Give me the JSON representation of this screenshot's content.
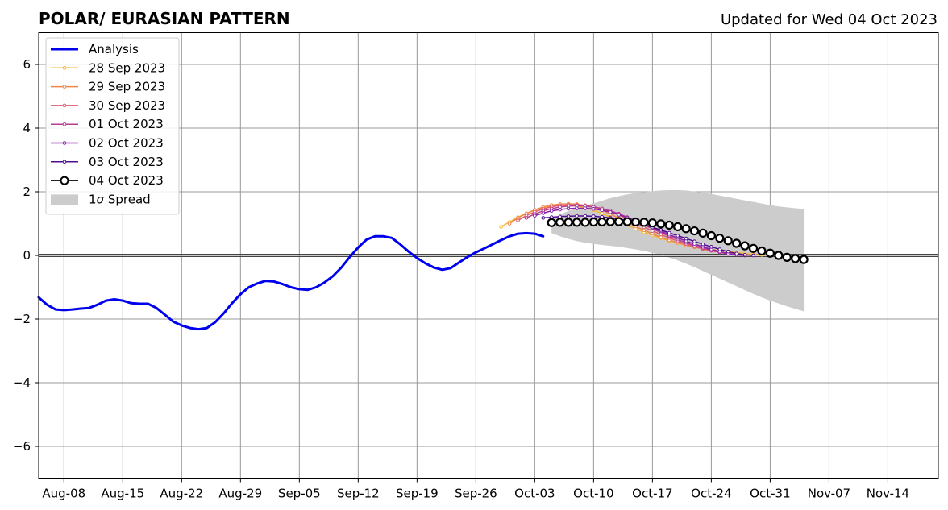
{
  "chart_data": {
    "type": "line",
    "title": "POLAR/ EURASIAN  PATTERN",
    "subtitle": "Updated for Wed 04 Oct 2023",
    "xlabel": "",
    "ylabel": "",
    "x_start": "2023-08-05",
    "xlim": [
      "2023-08-05",
      "2023-11-20"
    ],
    "ylim": [
      -7,
      7
    ],
    "grid": true,
    "legend_position": "top-left",
    "x_ticks": [
      "Aug-08",
      "Aug-15",
      "Aug-22",
      "Aug-29",
      "Sep-05",
      "Sep-12",
      "Sep-19",
      "Sep-26",
      "Oct-03",
      "Oct-10",
      "Oct-17",
      "Oct-24",
      "Oct-31",
      "Nov-07",
      "Nov-14"
    ],
    "y_ticks": [
      -6,
      -4,
      -2,
      0,
      2,
      4,
      6
    ],
    "analysis": {
      "name": "Analysis",
      "color": "#0000ee",
      "points": [
        [
          "2023-08-05",
          -1.32
        ],
        [
          "2023-08-06",
          -1.55
        ],
        [
          "2023-08-07",
          -1.7
        ],
        [
          "2023-08-08",
          -1.72
        ],
        [
          "2023-08-09",
          -1.7
        ],
        [
          "2023-08-10",
          -1.67
        ],
        [
          "2023-08-11",
          -1.65
        ],
        [
          "2023-08-12",
          -1.55
        ],
        [
          "2023-08-13",
          -1.42
        ],
        [
          "2023-08-14",
          -1.38
        ],
        [
          "2023-08-15",
          -1.42
        ],
        [
          "2023-08-16",
          -1.5
        ],
        [
          "2023-08-17",
          -1.52
        ],
        [
          "2023-08-18",
          -1.52
        ],
        [
          "2023-08-19",
          -1.65
        ],
        [
          "2023-08-20",
          -1.86
        ],
        [
          "2023-08-21",
          -2.08
        ],
        [
          "2023-08-22",
          -2.2
        ],
        [
          "2023-08-23",
          -2.28
        ],
        [
          "2023-08-24",
          -2.32
        ],
        [
          "2023-08-25",
          -2.28
        ],
        [
          "2023-08-26",
          -2.1
        ],
        [
          "2023-08-27",
          -1.82
        ],
        [
          "2023-08-28",
          -1.5
        ],
        [
          "2023-08-29",
          -1.22
        ],
        [
          "2023-08-30",
          -1.0
        ],
        [
          "2023-08-31",
          -0.88
        ],
        [
          "2023-09-01",
          -0.8
        ],
        [
          "2023-09-02",
          -0.82
        ],
        [
          "2023-09-03",
          -0.9
        ],
        [
          "2023-09-04",
          -1.0
        ],
        [
          "2023-09-05",
          -1.06
        ],
        [
          "2023-09-06",
          -1.08
        ],
        [
          "2023-09-07",
          -1.0
        ],
        [
          "2023-09-08",
          -0.85
        ],
        [
          "2023-09-09",
          -0.65
        ],
        [
          "2023-09-10",
          -0.38
        ],
        [
          "2023-09-11",
          -0.05
        ],
        [
          "2023-09-12",
          0.25
        ],
        [
          "2023-09-13",
          0.5
        ],
        [
          "2023-09-14",
          0.6
        ],
        [
          "2023-09-15",
          0.6
        ],
        [
          "2023-09-16",
          0.55
        ],
        [
          "2023-09-17",
          0.35
        ],
        [
          "2023-09-18",
          0.12
        ],
        [
          "2023-09-19",
          -0.08
        ],
        [
          "2023-09-20",
          -0.25
        ],
        [
          "2023-09-21",
          -0.38
        ],
        [
          "2023-09-22",
          -0.45
        ],
        [
          "2023-09-23",
          -0.4
        ],
        [
          "2023-09-24",
          -0.22
        ],
        [
          "2023-09-25",
          -0.05
        ],
        [
          "2023-09-26",
          0.1
        ],
        [
          "2023-09-27",
          0.22
        ],
        [
          "2023-09-28",
          0.35
        ],
        [
          "2023-09-29",
          0.48
        ],
        [
          "2023-09-30",
          0.6
        ],
        [
          "2023-10-01",
          0.68
        ],
        [
          "2023-10-02",
          0.7
        ],
        [
          "2023-10-03",
          0.68
        ],
        [
          "2023-10-04",
          0.6
        ]
      ]
    },
    "forecasts": [
      {
        "name": "28 Sep 2023",
        "color": "#f7b62f",
        "start": "2023-09-29",
        "values": [
          0.9,
          1.05,
          1.2,
          1.32,
          1.42,
          1.5,
          1.55,
          1.57,
          1.57,
          1.55,
          1.5,
          1.42,
          1.32,
          1.2,
          1.08,
          0.96,
          0.84,
          0.73,
          0.63,
          0.54,
          0.46,
          0.39,
          0.33,
          0.28,
          0.23,
          0.19,
          0.15,
          0.12,
          0.09,
          0.06,
          0.03,
          0.02,
          0.01,
          0.0
        ]
      },
      {
        "name": "29 Sep 2023",
        "color": "#f0864a",
        "start": "2023-09-30",
        "values": [
          1.0,
          1.18,
          1.32,
          1.43,
          1.52,
          1.58,
          1.61,
          1.62,
          1.61,
          1.57,
          1.51,
          1.42,
          1.3,
          1.17,
          1.04,
          0.91,
          0.79,
          0.68,
          0.57,
          0.48,
          0.4,
          0.32,
          0.26,
          0.2,
          0.15,
          0.11,
          0.07,
          0.04,
          0.02,
          0.0
        ]
      },
      {
        "name": "30 Sep 2023",
        "color": "#de5a6e",
        "start": "2023-10-01",
        "values": [
          1.1,
          1.25,
          1.37,
          1.46,
          1.53,
          1.57,
          1.59,
          1.59,
          1.57,
          1.53,
          1.47,
          1.38,
          1.27,
          1.15,
          1.02,
          0.89,
          0.77,
          0.66,
          0.55,
          0.45,
          0.36,
          0.28,
          0.21,
          0.15,
          0.1,
          0.06,
          0.03,
          0.0
        ]
      },
      {
        "name": "01 Oct 2023",
        "color": "#b43c92",
        "start": "2023-10-02",
        "values": [
          1.18,
          1.3,
          1.4,
          1.47,
          1.52,
          1.55,
          1.56,
          1.55,
          1.52,
          1.47,
          1.4,
          1.31,
          1.2,
          1.08,
          0.96,
          0.84,
          0.72,
          0.61,
          0.5,
          0.4,
          0.31,
          0.23,
          0.16,
          0.1,
          0.05,
          0.02,
          0.0
        ]
      },
      {
        "name": "02 Oct 2023",
        "color": "#8a1fa8",
        "start": "2023-10-03",
        "values": [
          1.25,
          1.33,
          1.4,
          1.44,
          1.47,
          1.48,
          1.48,
          1.46,
          1.42,
          1.36,
          1.28,
          1.19,
          1.09,
          0.98,
          0.87,
          0.76,
          0.65,
          0.55,
          0.45,
          0.36,
          0.27,
          0.19,
          0.12,
          0.06,
          0.02,
          0.0
        ]
      },
      {
        "name": "03 Oct 2023",
        "color": "#4d0d8e",
        "start": "2023-10-04",
        "values": [
          1.18,
          1.2,
          1.22,
          1.23,
          1.24,
          1.24,
          1.23,
          1.21,
          1.18,
          1.14,
          1.09,
          1.03,
          0.96,
          0.88,
          0.8,
          0.71,
          0.62,
          0.53,
          0.44,
          0.35,
          0.27,
          0.19,
          0.12,
          0.06,
          0.02,
          0.0
        ]
      }
    ],
    "current_forecast": {
      "name": "04 Oct 2023",
      "color": "#000000",
      "start": "2023-10-05",
      "values": [
        1.03,
        1.04,
        1.04,
        1.04,
        1.04,
        1.05,
        1.05,
        1.06,
        1.06,
        1.06,
        1.05,
        1.04,
        1.02,
        0.99,
        0.95,
        0.9,
        0.84,
        0.77,
        0.7,
        0.62,
        0.54,
        0.46,
        0.38,
        0.3,
        0.22,
        0.14,
        0.07,
        0.0,
        -0.06,
        -0.1,
        -0.13
      ]
    },
    "spread": {
      "name": "1σ Spread",
      "legend_label": "1",
      "legend_label_symbol": "σ",
      "legend_label_suffix": " Spread",
      "color": "#cccccc",
      "start": "2023-10-05",
      "upper": [
        1.05,
        1.28,
        1.4,
        1.48,
        1.56,
        1.64,
        1.72,
        1.8,
        1.86,
        1.92,
        1.96,
        1.99,
        2.02,
        2.04,
        2.05,
        2.05,
        2.04,
        2.01,
        1.97,
        1.93,
        1.88,
        1.83,
        1.78,
        1.73,
        1.68,
        1.63,
        1.58,
        1.54,
        1.51,
        1.48,
        1.46
      ],
      "lower": [
        0.7,
        0.6,
        0.52,
        0.45,
        0.4,
        0.36,
        0.33,
        0.3,
        0.27,
        0.23,
        0.19,
        0.14,
        0.08,
        0.01,
        -0.07,
        -0.16,
        -0.26,
        -0.37,
        -0.49,
        -0.61,
        -0.73,
        -0.85,
        -0.97,
        -1.09,
        -1.21,
        -1.32,
        -1.42,
        -1.51,
        -1.6,
        -1.68,
        -1.76
      ]
    }
  }
}
